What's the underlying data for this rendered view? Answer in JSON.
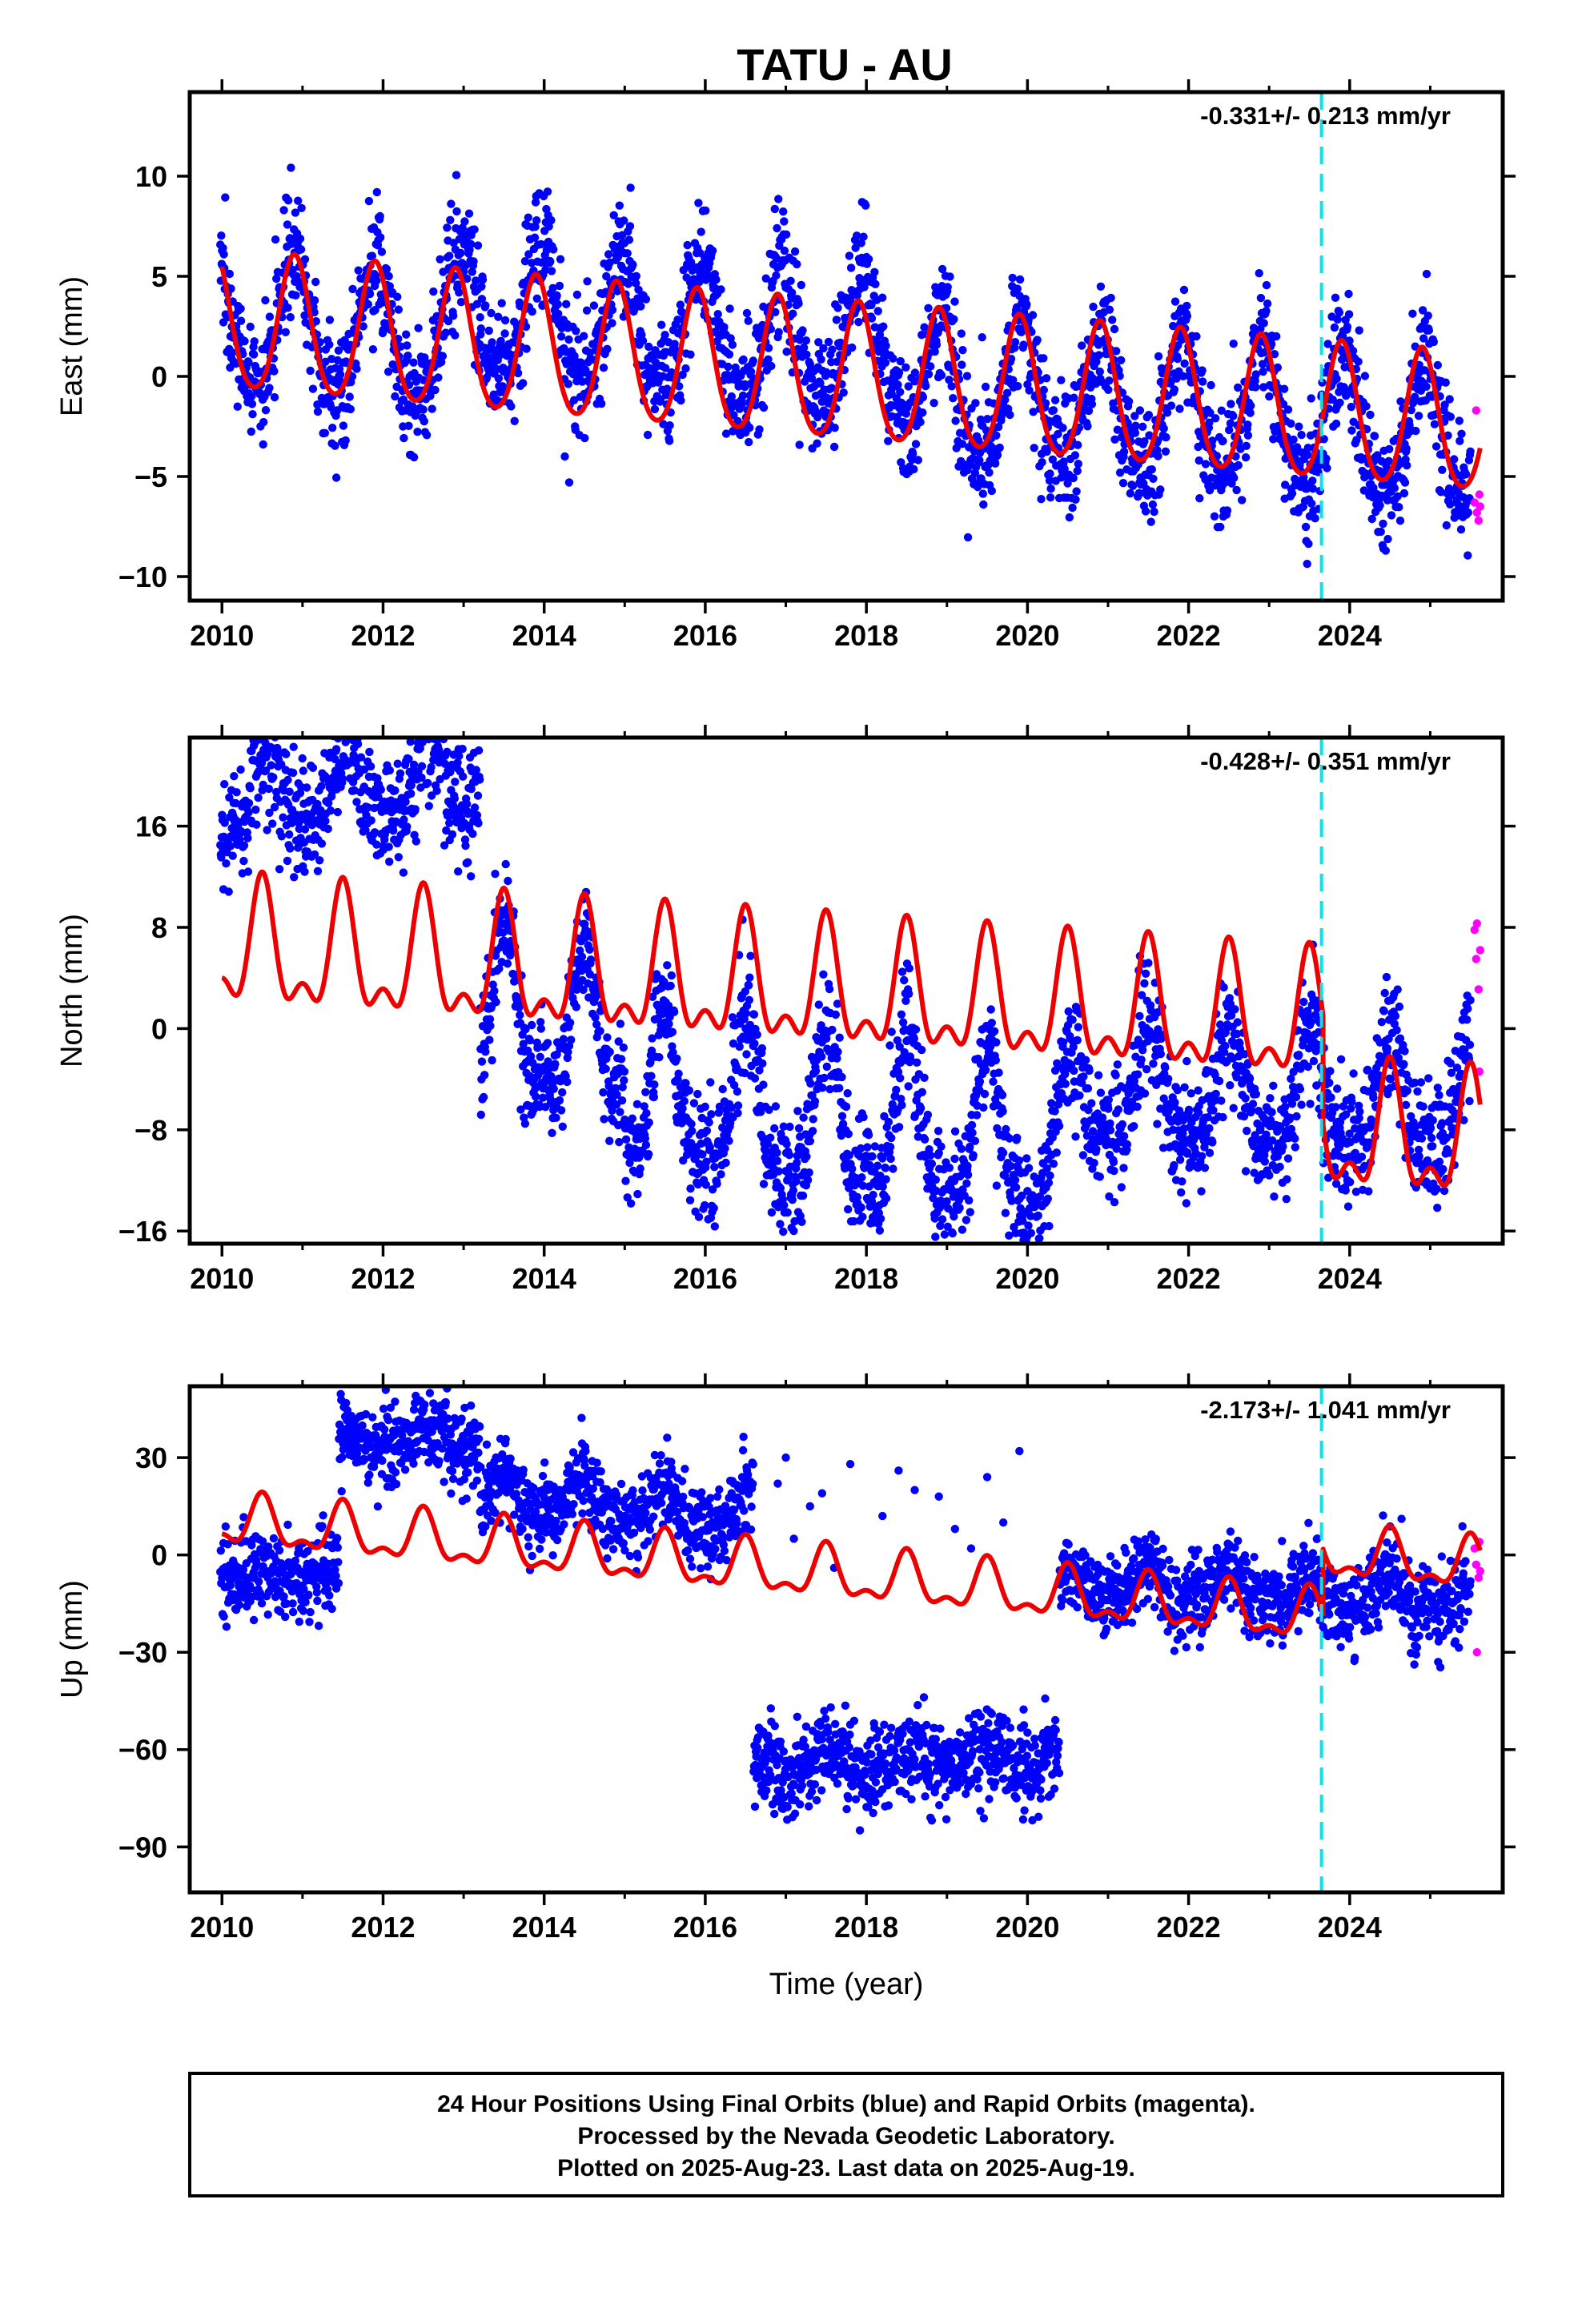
{
  "title": "TATU - AU",
  "colors": {
    "final_orbits": "#0000ff",
    "rapid_orbits": "#ff00ff",
    "model": "#ee0000",
    "event_line": "#00e5ee"
  },
  "chart_data": [
    {
      "type": "scatter",
      "component": "east",
      "ylabel": "East (mm)",
      "rate_label": "-0.331+/- 0.213 mm/yr",
      "xlim": [
        2009.6,
        2025.9
      ],
      "ylim": [
        -11.2,
        14.2
      ],
      "xticks": [
        2010,
        2012,
        2014,
        2016,
        2018,
        2020,
        2022,
        2024
      ],
      "xtick_labels": [
        "2010",
        "2012",
        "2014",
        "2016",
        "2018",
        "2020",
        "2022",
        "2024"
      ],
      "yticks": [
        -10,
        -5,
        0,
        5,
        10
      ],
      "ytick_labels": [
        "−10",
        "−5",
        "0",
        "5",
        "10"
      ],
      "event_line_x": 2023.65,
      "series": [
        {
          "role": "model",
          "model_pieces": [
            {
              "t0": 2010.0,
              "t1": 2025.62,
              "offset": 2.6,
              "trend": -0.331,
              "amp1": 3.4,
              "amp2": 0.4,
              "peak": 0.9
            }
          ]
        },
        {
          "role": "final",
          "scatter_sigma": 1.55,
          "sample_days": 2,
          "t_range": [
            2009.98,
            2025.5
          ],
          "data_pieces": [
            {
              "t0": 2009.98,
              "t1": 2013.0,
              "offset": 2.6,
              "trend": -0.331,
              "amp1": 3.3,
              "amp2": 0.4,
              "peak": 0.9
            },
            {
              "t0": 2013.0,
              "t1": 2018.5,
              "offset": 4.2,
              "trend": -0.331,
              "amp1": 3.2,
              "amp2": 0.4,
              "peak": 0.95
            },
            {
              "t0": 2018.5,
              "t1": 2025.5,
              "offset": 2.2,
              "trend": -0.331,
              "amp1": 3.3,
              "amp2": 0.4,
              "peak": 0.92
            }
          ]
        },
        {
          "role": "rapid",
          "points": [
            {
              "x": 2025.55,
              "y": -6.3
            },
            {
              "x": 2025.57,
              "y": -1.7
            },
            {
              "x": 2025.58,
              "y": -6.8
            },
            {
              "x": 2025.6,
              "y": -7.2
            },
            {
              "x": 2025.61,
              "y": -5.9
            },
            {
              "x": 2025.62,
              "y": -6.5
            }
          ]
        }
      ]
    },
    {
      "type": "scatter",
      "component": "north",
      "ylabel": "North (mm)",
      "rate_label": "-0.428+/- 0.351 mm/yr",
      "xlim": [
        2009.6,
        2025.9
      ],
      "ylim": [
        -17.0,
        23.0
      ],
      "xticks": [
        2010,
        2012,
        2014,
        2016,
        2018,
        2020,
        2022,
        2024
      ],
      "xtick_labels": [
        "2010",
        "2012",
        "2014",
        "2016",
        "2018",
        "2020",
        "2022",
        "2024"
      ],
      "yticks": [
        -16,
        -8,
        0,
        8,
        16
      ],
      "ytick_labels": [
        "−16",
        "−8",
        "0",
        "8",
        "16"
      ],
      "event_line_x": 2023.65,
      "series": [
        {
          "role": "model",
          "model_pieces": [
            {
              "t0": 2010.0,
              "t1": 2023.67,
              "offset": 6.0,
              "trend": -0.428,
              "amp1": 4.3,
              "amp2": 2.3,
              "peak": 0.5
            },
            {
              "t0": 2023.67,
              "t1": 2025.62,
              "offset": -2.6,
              "trend": -0.428,
              "amp1": 4.3,
              "amp2": 2.3,
              "peak": 0.5
            }
          ]
        },
        {
          "role": "final",
          "scatter_sigma": 2.3,
          "sample_days": 2,
          "t_range": [
            2009.98,
            2025.5
          ],
          "data_pieces": [
            {
              "t0": 2009.98,
              "t1": 2013.2,
              "offset": 18.0,
              "trend": 0.6,
              "amp1": 2.6,
              "amp2": 0.6,
              "peak": 0.55
            },
            {
              "t0": 2013.2,
              "t1": 2015.0,
              "offset": 4.0,
              "trend": -1.0,
              "amp1": 5.5,
              "amp2": 2.0,
              "peak": 0.5
            },
            {
              "t0": 2015.0,
              "t1": 2020.6,
              "offset": -1.5,
              "trend": -0.8,
              "amp1": 6.0,
              "amp2": 2.0,
              "peak": 0.5
            },
            {
              "t0": 2020.6,
              "t1": 2025.5,
              "offset": -3.0,
              "trend": -0.2,
              "amp1": 4.5,
              "amp2": 1.5,
              "peak": 0.5
            }
          ]
        },
        {
          "role": "rapid",
          "points": [
            {
              "x": 2025.55,
              "y": 7.8
            },
            {
              "x": 2025.57,
              "y": 5.5
            },
            {
              "x": 2025.58,
              "y": 8.3
            },
            {
              "x": 2025.6,
              "y": 3.1
            },
            {
              "x": 2025.61,
              "y": -3.4
            },
            {
              "x": 2025.62,
              "y": 6.2
            }
          ]
        }
      ]
    },
    {
      "type": "scatter",
      "component": "up",
      "ylabel": "Up (mm)",
      "xlabel": "Time (year)",
      "rate_label": "-2.173+/- 1.041 mm/yr",
      "xlim": [
        2009.6,
        2025.9
      ],
      "ylim": [
        -104.0,
        52.0
      ],
      "xticks": [
        2010,
        2012,
        2014,
        2016,
        2018,
        2020,
        2022,
        2024
      ],
      "xtick_labels": [
        "2010",
        "2012",
        "2014",
        "2016",
        "2018",
        "2020",
        "2022",
        "2024"
      ],
      "yticks": [
        -90,
        -60,
        -30,
        0,
        30
      ],
      "ytick_labels": [
        "−90",
        "−60",
        "−30",
        "0",
        "30"
      ],
      "event_line_x": 2023.65,
      "series": [
        {
          "role": "model",
          "model_pieces": [
            {
              "t0": 2010.0,
              "t1": 2023.67,
              "offset": 10.0,
              "trend": -2.173,
              "amp1": 7.0,
              "amp2": 3.5,
              "peak": 0.5
            },
            {
              "t0": 2023.67,
              "t1": 2025.62,
              "offset": 30.0,
              "trend": -2.173,
              "amp1": 7.0,
              "amp2": 3.5,
              "peak": 0.5
            }
          ]
        },
        {
          "role": "final",
          "scatter_sigma": 6.5,
          "sample_days": 2,
          "t_range": [
            2009.98,
            2025.5
          ],
          "data_pieces": [
            {
              "t0": 2009.98,
              "t1": 2011.45,
              "offset": -6.0,
              "trend": 0,
              "amp1": 2.0,
              "amp2": 0,
              "peak": 0.5
            },
            {
              "t0": 2011.45,
              "t1": 2013.2,
              "offset": 36.0,
              "trend": 0,
              "amp1": 3.0,
              "amp2": 0,
              "peak": 0.5
            },
            {
              "t0": 2013.2,
              "t1": 2016.6,
              "offset": 25.0,
              "trend": -2.0,
              "amp1": 6.0,
              "amp2": 2.0,
              "peak": 0.5
            },
            {
              "t0": 2016.6,
              "t1": 2020.4,
              "offset": -68.0,
              "trend": 0.5,
              "amp1": 3.0,
              "amp2": 0,
              "peak": 0.5
            },
            {
              "t0": 2020.4,
              "t1": 2025.5,
              "offset": 8.0,
              "trend": -1.5,
              "amp1": 5.0,
              "amp2": 2.0,
              "peak": 0.5
            }
          ],
          "extra_points": [
            {
              "x": 2016.9,
              "y": 22
            },
            {
              "x": 2017.3,
              "y": 15
            },
            {
              "x": 2017.8,
              "y": 28
            },
            {
              "x": 2018.2,
              "y": 12
            },
            {
              "x": 2018.6,
              "y": 20
            },
            {
              "x": 2019.1,
              "y": 8
            },
            {
              "x": 2019.5,
              "y": 24
            },
            {
              "x": 2019.9,
              "y": 32
            },
            {
              "x": 2017.1,
              "y": 5
            },
            {
              "x": 2018.9,
              "y": 18
            },
            {
              "x": 2017.6,
              "y": -4
            },
            {
              "x": 2019.3,
              "y": 2
            },
            {
              "x": 2017.0,
              "y": 30
            },
            {
              "x": 2018.4,
              "y": 26
            },
            {
              "x": 2019.7,
              "y": 10
            },
            {
              "x": 2017.45,
              "y": 19
            }
          ]
        },
        {
          "role": "rapid",
          "points": [
            {
              "x": 2025.55,
              "y": 2
            },
            {
              "x": 2025.57,
              "y": -3
            },
            {
              "x": 2025.58,
              "y": -30
            },
            {
              "x": 2025.6,
              "y": -7
            },
            {
              "x": 2025.61,
              "y": 4
            },
            {
              "x": 2025.62,
              "y": -5
            }
          ]
        }
      ]
    }
  ],
  "footer": {
    "line1": "24 Hour Positions Using Final Orbits (blue) and Rapid Orbits (magenta).",
    "line2": "Processed by the Nevada Geodetic Laboratory.",
    "line3": "Plotted on 2025-Aug-23. Last data on 2025-Aug-19."
  }
}
